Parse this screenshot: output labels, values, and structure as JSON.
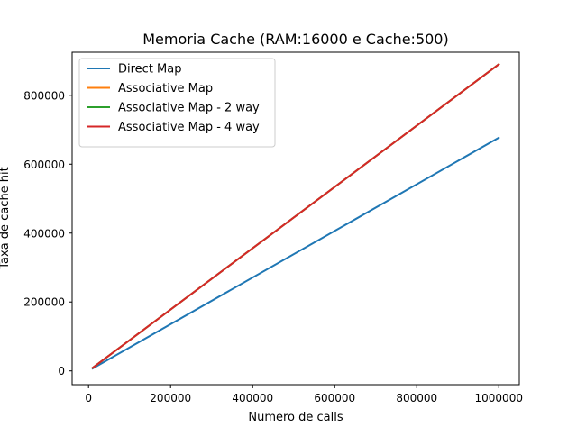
{
  "chart_data": {
    "type": "line",
    "title": "Memoria Cache (RAM:16000 e Cache:500)",
    "xlabel": "Numero de calls",
    "ylabel": "Taxa de cache hit",
    "xlim": [
      -40000,
      1050000
    ],
    "ylim": [
      -40000,
      925000
    ],
    "xticks": [
      0,
      200000,
      400000,
      600000,
      800000,
      1000000
    ],
    "xtick_labels": [
      "0",
      "200000",
      "400000",
      "600000",
      "800000",
      "1000000"
    ],
    "yticks": [
      0,
      200000,
      400000,
      600000,
      800000
    ],
    "ytick_labels": [
      "0",
      "200000",
      "400000",
      "600000",
      "800000"
    ],
    "grid": false,
    "legend_position": "upper-left",
    "x": [
      10000,
      1000000
    ],
    "series": [
      {
        "name": "Direct Map",
        "color": "#1f77b4",
        "values": [
          7000,
          677000
        ]
      },
      {
        "name": "Associative Map",
        "color": "#ff7f0e",
        "values": [
          8900,
          890000
        ]
      },
      {
        "name": "Associative Map - 2 way",
        "color": "#2ca02c",
        "values": [
          8900,
          890000
        ]
      },
      {
        "name": "Associative Map - 4 way",
        "color": "#d62728",
        "values": [
          8900,
          890000
        ]
      }
    ]
  }
}
